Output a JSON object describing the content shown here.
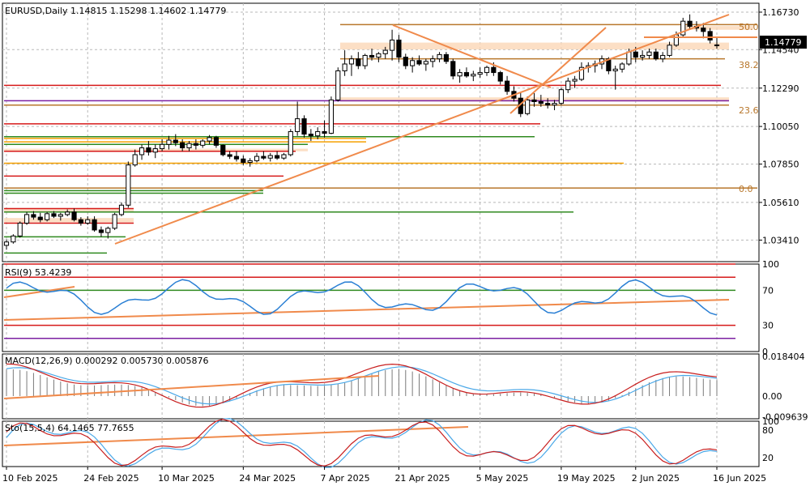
{
  "chart_data": [
    {
      "type": "candlestick",
      "title": "EURUSD,Daily  1.14815 1.15298 1.14602 1.14779",
      "symbol": "EURUSD",
      "timeframe": "Daily",
      "last_ohlc": {
        "open": 1.14815,
        "high": 1.15298,
        "low": 1.14602,
        "close": 1.14779
      },
      "last_price_label": "1.14779",
      "y_ticks": [
        "1.16730",
        "1.14540",
        "1.12290",
        "1.10050",
        "1.07850",
        "1.05610",
        "1.03410"
      ],
      "ylim": [
        1.0215,
        1.1725
      ],
      "fib_levels": [
        {
          "label": "50.0",
          "price": 1.1588
        },
        {
          "label": "38.2",
          "price": 1.1365
        },
        {
          "label": "23.6",
          "price": 1.11
        },
        {
          "label": "0.0",
          "price": 1.064
        }
      ],
      "x_ticks": [
        "10 Feb 2025",
        "24 Feb 2025",
        "10 Mar 2025",
        "24 Mar 2025",
        "7 Apr 2025",
        "21 Apr 2025",
        "5 May 2025",
        "19 May 2025",
        "2 Jun 2025",
        "16 Jun 2025"
      ],
      "candles": [
        [
          1.031,
          1.0345,
          1.0285,
          1.033
        ],
        [
          1.033,
          1.0375,
          1.032,
          1.0365
        ],
        [
          1.0365,
          1.045,
          1.0355,
          1.044
        ],
        [
          1.044,
          1.0505,
          1.043,
          1.049
        ],
        [
          1.049,
          1.051,
          1.046,
          1.0475
        ],
        [
          1.0475,
          1.05,
          1.0445,
          1.046
        ],
        [
          1.046,
          1.0505,
          1.045,
          1.0495
        ],
        [
          1.0495,
          1.051,
          1.047,
          1.048
        ],
        [
          1.048,
          1.05,
          1.0455,
          1.049
        ],
        [
          1.049,
          1.052,
          1.048,
          1.0505
        ],
        [
          1.0505,
          1.0525,
          1.045,
          1.046
        ],
        [
          1.046,
          1.0475,
          1.0425,
          1.044
        ],
        [
          1.044,
          1.048,
          1.043,
          1.046
        ],
        [
          1.046,
          1.048,
          1.039,
          1.04
        ],
        [
          1.04,
          1.042,
          1.036,
          1.0385
        ],
        [
          1.0385,
          1.042,
          1.035,
          1.041
        ],
        [
          1.041,
          1.05,
          1.04,
          1.049
        ],
        [
          1.049,
          1.056,
          1.048,
          1.0545
        ],
        [
          1.0545,
          1.08,
          1.053,
          1.078
        ],
        [
          1.078,
          1.087,
          1.077,
          1.084
        ],
        [
          1.084,
          1.09,
          1.081,
          1.088
        ],
        [
          1.088,
          1.092,
          1.0835,
          1.0855
        ],
        [
          1.0855,
          1.09,
          1.082,
          1.0875
        ],
        [
          1.0875,
          1.093,
          1.086,
          1.09
        ],
        [
          1.09,
          1.095,
          1.087,
          1.0925
        ],
        [
          1.0925,
          1.096,
          1.089,
          1.091
        ],
        [
          1.091,
          1.093,
          1.086,
          1.088
        ],
        [
          1.088,
          1.092,
          1.086,
          1.0905
        ],
        [
          1.0905,
          1.093,
          1.087,
          1.0895
        ],
        [
          1.0895,
          1.093,
          1.088,
          1.092
        ],
        [
          1.092,
          1.0955,
          1.09,
          1.094
        ],
        [
          1.094,
          1.095,
          1.088,
          1.0895
        ],
        [
          1.0895,
          1.09,
          1.083,
          1.084
        ],
        [
          1.084,
          1.086,
          1.0815,
          1.083
        ],
        [
          1.083,
          1.086,
          1.08,
          1.0815
        ],
        [
          1.0815,
          1.0835,
          1.078,
          1.0795
        ],
        [
          1.0795,
          1.082,
          1.077,
          1.0805
        ],
        [
          1.0805,
          1.085,
          1.0795,
          1.083
        ],
        [
          1.083,
          1.086,
          1.081,
          1.082
        ],
        [
          1.082,
          1.085,
          1.08,
          1.0835
        ],
        [
          1.0835,
          1.086,
          1.081,
          1.082
        ],
        [
          1.082,
          1.085,
          1.081,
          1.084
        ],
        [
          1.084,
          1.099,
          1.083,
          1.0975
        ],
        [
          1.0975,
          1.115,
          1.095,
          1.105
        ],
        [
          1.105,
          1.107,
          1.094,
          1.096
        ],
        [
          1.096,
          1.099,
          1.092,
          1.095
        ],
        [
          1.095,
          1.1,
          1.093,
          1.0975
        ],
        [
          1.0975,
          1.104,
          1.094,
          1.0965
        ],
        [
          1.0965,
          1.118,
          1.096,
          1.116
        ],
        [
          1.116,
          1.135,
          1.115,
          1.133
        ],
        [
          1.133,
          1.145,
          1.13,
          1.137
        ],
        [
          1.137,
          1.142,
          1.13,
          1.14
        ],
        [
          1.14,
          1.144,
          1.134,
          1.136
        ],
        [
          1.136,
          1.143,
          1.134,
          1.142
        ],
        [
          1.142,
          1.146,
          1.139,
          1.141
        ],
        [
          1.141,
          1.144,
          1.138,
          1.143
        ],
        [
          1.143,
          1.147,
          1.14,
          1.145
        ],
        [
          1.145,
          1.157,
          1.139,
          1.151
        ],
        [
          1.151,
          1.154,
          1.138,
          1.141
        ],
        [
          1.141,
          1.143,
          1.134,
          1.136
        ],
        [
          1.136,
          1.141,
          1.132,
          1.139
        ],
        [
          1.139,
          1.142,
          1.136,
          1.137
        ],
        [
          1.137,
          1.14,
          1.133,
          1.1385
        ],
        [
          1.1385,
          1.142,
          1.135,
          1.14
        ],
        [
          1.14,
          1.144,
          1.138,
          1.1425
        ],
        [
          1.1425,
          1.144,
          1.137,
          1.1385
        ],
        [
          1.1385,
          1.14,
          1.128,
          1.13
        ],
        [
          1.13,
          1.134,
          1.126,
          1.132
        ],
        [
          1.132,
          1.135,
          1.129,
          1.13
        ],
        [
          1.13,
          1.133,
          1.127,
          1.131
        ],
        [
          1.131,
          1.135,
          1.129,
          1.132
        ],
        [
          1.132,
          1.136,
          1.13,
          1.135
        ],
        [
          1.135,
          1.138,
          1.13,
          1.132
        ],
        [
          1.132,
          1.133,
          1.125,
          1.127
        ],
        [
          1.127,
          1.13,
          1.119,
          1.121
        ],
        [
          1.121,
          1.124,
          1.115,
          1.117
        ],
        [
          1.117,
          1.12,
          1.106,
          1.108
        ],
        [
          1.108,
          1.118,
          1.107,
          1.116
        ],
        [
          1.116,
          1.12,
          1.112,
          1.115
        ],
        [
          1.115,
          1.119,
          1.112,
          1.114
        ],
        [
          1.114,
          1.117,
          1.111,
          1.113
        ],
        [
          1.113,
          1.116,
          1.11,
          1.114
        ],
        [
          1.114,
          1.123,
          1.113,
          1.122
        ],
        [
          1.122,
          1.129,
          1.12,
          1.127
        ],
        [
          1.127,
          1.13,
          1.123,
          1.128
        ],
        [
          1.128,
          1.138,
          1.127,
          1.135
        ],
        [
          1.135,
          1.138,
          1.132,
          1.136
        ],
        [
          1.136,
          1.139,
          1.132,
          1.137
        ],
        [
          1.137,
          1.142,
          1.134,
          1.14
        ],
        [
          1.14,
          1.141,
          1.131,
          1.133
        ],
        [
          1.133,
          1.136,
          1.122,
          1.134
        ],
        [
          1.134,
          1.138,
          1.132,
          1.137
        ],
        [
          1.137,
          1.146,
          1.136,
          1.144
        ],
        [
          1.144,
          1.147,
          1.138,
          1.141
        ],
        [
          1.141,
          1.145,
          1.139,
          1.142
        ],
        [
          1.142,
          1.146,
          1.14,
          1.144
        ],
        [
          1.144,
          1.146,
          1.139,
          1.14
        ],
        [
          1.14,
          1.144,
          1.138,
          1.142
        ],
        [
          1.142,
          1.15,
          1.141,
          1.148
        ],
        [
          1.148,
          1.156,
          1.147,
          1.154
        ],
        [
          1.154,
          1.164,
          1.153,
          1.162
        ],
        [
          1.162,
          1.166,
          1.157,
          1.159
        ],
        [
          1.159,
          1.162,
          1.156,
          1.158
        ],
        [
          1.158,
          1.161,
          1.152,
          1.156
        ],
        [
          1.156,
          1.158,
          1.149,
          1.151
        ],
        [
          1.14815,
          1.15298,
          1.14602,
          1.14779
        ]
      ],
      "panels": [
        {
          "name": "RSI",
          "title": "RSI(9) 53.4239",
          "ticks": [
            "100",
            "70",
            "30",
            "0"
          ],
          "ylim": [
            0,
            100
          ]
        },
        {
          "name": "MACD",
          "title": "MACD(12,26,9) 0.000292 0.005730 0.005876",
          "ticks": [
            "0.018404",
            "0.00",
            "-0.009639"
          ],
          "ylim": [
            -0.0105,
            0.0195
          ]
        },
        {
          "name": "Stochastic",
          "title": "Sto(15,5,4) 64.1465 77.7655",
          "ticks": [
            "100",
            "80",
            "20"
          ],
          "ylim": [
            0,
            100
          ]
        }
      ],
      "colors": {
        "bull": "#ffffff",
        "bear": "#000000",
        "grid": "#b8b8b8",
        "trend": "#f08a4b",
        "red": "#d61a1a",
        "orange": "#f5a000",
        "green": "#2f8a1f",
        "purple": "#7b1fa2",
        "rsi": "#2a7fd4",
        "signal_red": "#c81e1e",
        "macd_blue": "#4aa8e8",
        "hist": "#7a7a7a"
      }
    }
  ]
}
